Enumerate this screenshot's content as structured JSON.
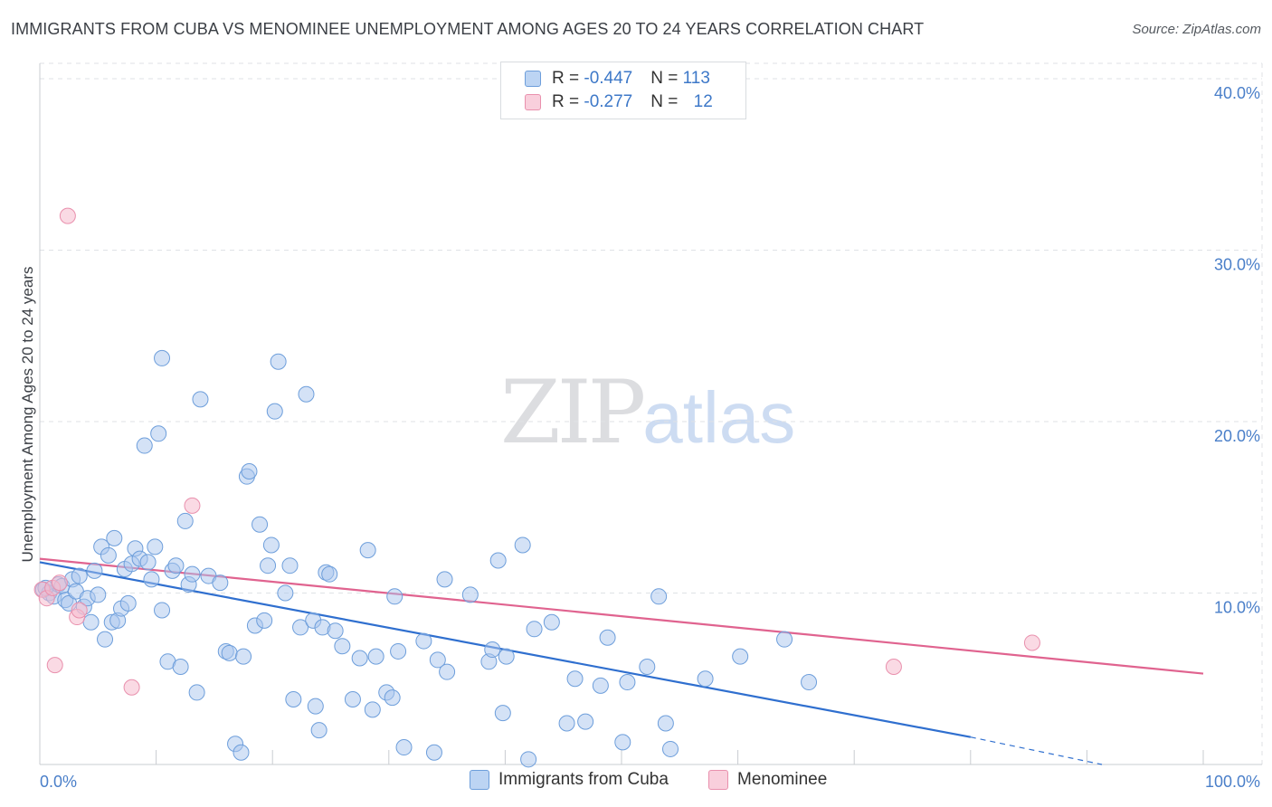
{
  "header": {
    "title": "IMMIGRANTS FROM CUBA VS MENOMINEE UNEMPLOYMENT AMONG AGES 20 TO 24 YEARS CORRELATION CHART",
    "source": "Source: ZipAtlas.com"
  },
  "watermark": {
    "zip": "ZIP",
    "atlas": "atlas"
  },
  "legend": {
    "rows": [
      {
        "r_label": "R = ",
        "r_value": "-0.447",
        "n_label": "N = ",
        "n_value": "113"
      },
      {
        "r_label": "R = ",
        "r_value": "-0.277",
        "n_label": "N = ",
        "n_value": "12"
      }
    ]
  },
  "bottom_legend": {
    "cuba": "Immigrants from Cuba",
    "menominee": "Menominee"
  },
  "chart_data": {
    "type": "scatter",
    "title": "IMMIGRANTS FROM CUBA VS MENOMINEE UNEMPLOYMENT AMONG AGES 20 TO 24 YEARS CORRELATION CHART",
    "xlabel": "",
    "ylabel": "Unemployment Among Ages 20 to 24 years",
    "x_tick_labels": [
      "0.0%",
      "100.0%"
    ],
    "y_tick_labels": [
      "10.0%",
      "20.0%",
      "30.0%",
      "40.0%"
    ],
    "y_ticks": [
      10,
      20,
      30,
      40
    ],
    "xlim": [
      0,
      100
    ],
    "ylim": [
      0,
      40.9
    ],
    "grid": true,
    "legend_position": "top-center",
    "colors": {
      "cuba_fill": "#a9c6ee",
      "cuba_stroke": "#6d9edb",
      "cuba_line": "#2f6fcf",
      "menominee_fill": "#f6bccd",
      "menominee_stroke": "#e990ad",
      "menominee_line": "#e0638f",
      "tick_text": "#4a7fc9"
    },
    "series": [
      {
        "name": "Immigrants from Cuba",
        "R": -0.447,
        "N": 113,
        "trend": {
          "x0": 0,
          "y0": 11.8,
          "x1": 80,
          "y1": 1.6,
          "dashed_to_x": 100,
          "dashed_to_y": -0.9
        },
        "points": [
          [
            0.3,
            10.2
          ],
          [
            0.8,
            10.0
          ],
          [
            1.2,
            9.8
          ],
          [
            1.6,
            10.5
          ],
          [
            1.9,
            10.4
          ],
          [
            2.2,
            9.6
          ],
          [
            2.5,
            9.4
          ],
          [
            2.8,
            10.8
          ],
          [
            3.1,
            10.1
          ],
          [
            3.4,
            11.0
          ],
          [
            3.8,
            9.2
          ],
          [
            4.1,
            9.7
          ],
          [
            4.4,
            8.3
          ],
          [
            4.7,
            11.3
          ],
          [
            5.0,
            9.9
          ],
          [
            5.3,
            12.7
          ],
          [
            5.6,
            7.3
          ],
          [
            5.9,
            12.2
          ],
          [
            6.2,
            8.3
          ],
          [
            6.4,
            13.2
          ],
          [
            6.7,
            8.4
          ],
          [
            7.0,
            9.1
          ],
          [
            7.3,
            11.4
          ],
          [
            7.6,
            9.4
          ],
          [
            7.9,
            11.7
          ],
          [
            8.2,
            12.6
          ],
          [
            8.6,
            12.0
          ],
          [
            9.0,
            18.6
          ],
          [
            9.3,
            11.8
          ],
          [
            9.6,
            10.8
          ],
          [
            9.9,
            12.7
          ],
          [
            10.2,
            19.3
          ],
          [
            10.5,
            9.0
          ],
          [
            10.5,
            23.7
          ],
          [
            11.0,
            6.0
          ],
          [
            11.4,
            11.3
          ],
          [
            11.7,
            11.6
          ],
          [
            12.1,
            5.7
          ],
          [
            12.5,
            14.2
          ],
          [
            12.8,
            10.5
          ],
          [
            13.1,
            11.1
          ],
          [
            13.5,
            4.2
          ],
          [
            13.8,
            21.3
          ],
          [
            14.5,
            11.0
          ],
          [
            15.5,
            10.6
          ],
          [
            16.0,
            6.6
          ],
          [
            16.3,
            6.5
          ],
          [
            16.8,
            1.2
          ],
          [
            17.3,
            0.7
          ],
          [
            17.5,
            6.3
          ],
          [
            17.8,
            16.8
          ],
          [
            18.0,
            17.1
          ],
          [
            18.5,
            8.1
          ],
          [
            18.9,
            14.0
          ],
          [
            19.3,
            8.4
          ],
          [
            19.6,
            11.6
          ],
          [
            19.9,
            12.8
          ],
          [
            20.2,
            20.6
          ],
          [
            20.5,
            23.5
          ],
          [
            21.1,
            10.0
          ],
          [
            21.5,
            11.6
          ],
          [
            21.8,
            3.8
          ],
          [
            22.4,
            8.0
          ],
          [
            22.9,
            21.6
          ],
          [
            23.5,
            8.4
          ],
          [
            23.7,
            3.4
          ],
          [
            24.0,
            2.0
          ],
          [
            24.3,
            8.0
          ],
          [
            24.6,
            11.2
          ],
          [
            24.9,
            11.1
          ],
          [
            25.4,
            7.8
          ],
          [
            26.0,
            6.9
          ],
          [
            26.9,
            3.8
          ],
          [
            27.5,
            6.2
          ],
          [
            28.2,
            12.5
          ],
          [
            28.6,
            3.2
          ],
          [
            28.9,
            6.3
          ],
          [
            29.8,
            4.2
          ],
          [
            30.3,
            3.9
          ],
          [
            30.5,
            9.8
          ],
          [
            30.8,
            6.6
          ],
          [
            31.3,
            1.0
          ],
          [
            33.0,
            7.2
          ],
          [
            33.9,
            0.7
          ],
          [
            34.2,
            6.1
          ],
          [
            35.0,
            5.4
          ],
          [
            34.8,
            10.8
          ],
          [
            37.0,
            9.9
          ],
          [
            38.6,
            6.0
          ],
          [
            38.9,
            6.7
          ],
          [
            39.4,
            11.9
          ],
          [
            39.8,
            3.0
          ],
          [
            40.1,
            6.3
          ],
          [
            41.5,
            12.8
          ],
          [
            42.0,
            0.3
          ],
          [
            42.5,
            7.9
          ],
          [
            44.0,
            8.3
          ],
          [
            45.3,
            2.4
          ],
          [
            46.0,
            5.0
          ],
          [
            46.9,
            2.5
          ],
          [
            48.2,
            4.6
          ],
          [
            48.8,
            7.4
          ],
          [
            50.1,
            1.3
          ],
          [
            50.5,
            4.8
          ],
          [
            52.2,
            5.7
          ],
          [
            53.2,
            9.8
          ],
          [
            53.8,
            2.4
          ],
          [
            54.2,
            0.9
          ],
          [
            57.2,
            5.0
          ],
          [
            60.2,
            6.3
          ],
          [
            64.0,
            7.3
          ],
          [
            66.1,
            4.8
          ],
          [
            0.5,
            10.3
          ]
        ]
      },
      {
        "name": "Menominee",
        "R": -0.277,
        "N": 12,
        "trend": {
          "x0": 0,
          "y0": 12.0,
          "x1": 100,
          "y1": 5.3
        },
        "points": [
          [
            0.2,
            10.2
          ],
          [
            0.6,
            9.7
          ],
          [
            1.1,
            10.3
          ],
          [
            1.3,
            5.8
          ],
          [
            1.7,
            10.6
          ],
          [
            2.4,
            32.0
          ],
          [
            3.2,
            8.6
          ],
          [
            3.4,
            9.0
          ],
          [
            7.9,
            4.5
          ],
          [
            13.1,
            15.1
          ],
          [
            85.3,
            7.1
          ],
          [
            73.4,
            5.7
          ]
        ]
      }
    ]
  }
}
